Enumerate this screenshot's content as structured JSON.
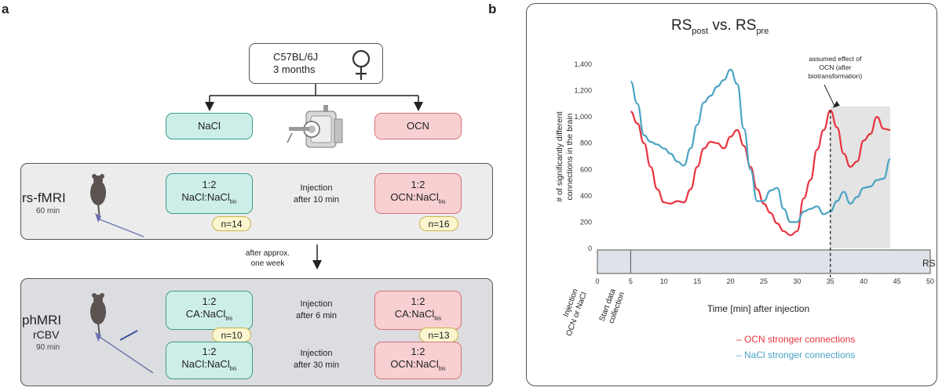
{
  "panel_a": {
    "letter": "a",
    "top_box": {
      "line1": "C57BL/6J",
      "line2": "3 months"
    },
    "nacl": "NaCl",
    "ocn": "OCN",
    "rs": {
      "title": "rs-fMRI",
      "duration": "60 min",
      "left_ratio": "1:2",
      "left_label": "NaCl:NaCl",
      "left_sub": "bis",
      "left_n": "n=14",
      "mid_line1": "Injection",
      "mid_line2": "after 10 min",
      "right_ratio": "1:2",
      "right_label": "OCN:NaCl",
      "right_sub": "bis",
      "right_n": "n=16"
    },
    "between_line1": "after approx.",
    "between_line2": "one week",
    "ph": {
      "title1": "phMRI",
      "title2": "rCBV",
      "duration": "90 min",
      "row1_left_ratio": "1:2",
      "row1_left_label": "CA:NaCl",
      "row1_left_sub": "bis",
      "row1_left_n": "n=10",
      "row1_mid_line1": "Injection",
      "row1_mid_line2": "after 6 min",
      "row1_right_ratio": "1:2",
      "row1_right_label": "CA:NaCl",
      "row1_right_sub": "bis",
      "row1_right_n": "n=13",
      "row2_left_ratio": "1:2",
      "row2_left_label": "NaCl:NaCl",
      "row2_left_sub": "bis",
      "row2_mid_line1": "Injection",
      "row2_mid_line2": "after 30 min",
      "row2_right_ratio": "1:2",
      "row2_right_label": "OCN:NaCl",
      "row2_right_sub": "bis"
    }
  },
  "panel_b": {
    "letter": "b",
    "title_main": "RS",
    "title_sub1": "post",
    "title_mid": " vs. RS",
    "title_sub2": "pre",
    "ylabel_line1": "# of significantly different",
    "ylabel_line2": "connections in the brain",
    "xlabel": "Time [min] after injection",
    "rs_bar_label": "RS",
    "annotation": [
      "assumed effect of",
      "OCN (after",
      "biotransformation)"
    ],
    "injection_label": [
      "Injection",
      "OCN or NaCl"
    ],
    "start_label": [
      "Start data",
      "collection"
    ],
    "legend": [
      {
        "text": "– OCN stronger connections",
        "color": "#e8343f"
      },
      {
        "text": "– NaCl stronger connections",
        "color": "#4ba3c4"
      }
    ]
  },
  "chart_data": {
    "type": "line",
    "title": "RSpost vs. RSpre",
    "xlabel": "Time [min] after injection",
    "ylabel": "# of significantly different connections in the brain",
    "xlim": [
      0,
      50
    ],
    "ylim": [
      0,
      1400
    ],
    "xticks": [
      0,
      5,
      10,
      15,
      20,
      25,
      30,
      35,
      40,
      45,
      50
    ],
    "yticks": [
      0,
      200,
      400,
      600,
      800,
      1000,
      1200,
      1400
    ],
    "ytick_labels": [
      "0",
      "200",
      "400",
      "600",
      "800",
      "1,000",
      "1,200",
      "1,400"
    ],
    "shaded_region": [
      35,
      44
    ],
    "marker_x": 35,
    "series": [
      {
        "name": "OCN stronger connections",
        "color": "#e8343f",
        "x": [
          5,
          6,
          7,
          8,
          9,
          10,
          11,
          12,
          13,
          14,
          15,
          16,
          17,
          18,
          19,
          20,
          21,
          22,
          23,
          24,
          25,
          26,
          27,
          28,
          29,
          30,
          31,
          32,
          33,
          34,
          35,
          36,
          37,
          38,
          39,
          40,
          41,
          42,
          43,
          44
        ],
        "values": [
          1040,
          950,
          800,
          620,
          450,
          350,
          340,
          360,
          350,
          450,
          620,
          760,
          810,
          800,
          760,
          850,
          900,
          780,
          620,
          450,
          340,
          270,
          190,
          130,
          100,
          130,
          380,
          520,
          750,
          900,
          1050,
          920,
          720,
          620,
          660,
          820,
          870,
          1000,
          910,
          900
        ]
      },
      {
        "name": "NaCl stronger connections",
        "color": "#4ba3c4",
        "x": [
          5,
          6,
          7,
          8,
          9,
          10,
          11,
          12,
          13,
          14,
          15,
          16,
          17,
          18,
          19,
          20,
          21,
          22,
          23,
          24,
          25,
          26,
          27,
          28,
          29,
          30,
          31,
          32,
          33,
          34,
          35,
          36,
          37,
          38,
          39,
          40,
          41,
          42,
          43,
          44
        ],
        "values": [
          1270,
          1100,
          860,
          810,
          790,
          760,
          720,
          660,
          630,
          760,
          940,
          1110,
          1160,
          1230,
          1280,
          1360,
          1250,
          910,
          600,
          360,
          360,
          440,
          460,
          300,
          200,
          200,
          280,
          300,
          320,
          260,
          280,
          360,
          430,
          340,
          390,
          460,
          470,
          520,
          530,
          680
        ]
      }
    ]
  }
}
